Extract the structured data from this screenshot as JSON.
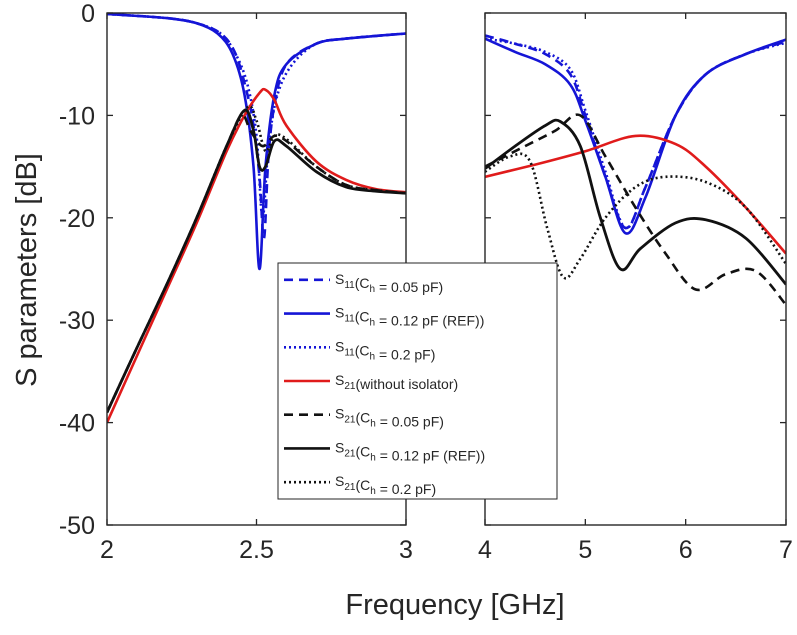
{
  "chart_data": {
    "type": "line",
    "xlabel": "Frequency [GHz]",
    "ylabel": "S parameters [dB]",
    "ylim": [
      -50,
      0
    ],
    "yticks": [
      0,
      -10,
      -20,
      -30,
      -40,
      -50
    ],
    "grid": false,
    "legend_position": "center",
    "colors": {
      "blue": "#1515d6",
      "red": "#e01b1b",
      "black": "#111111"
    },
    "panels": [
      {
        "id": "left",
        "xlim": [
          2,
          3
        ],
        "xticks": [
          "2",
          "2.5",
          "3"
        ],
        "xtick_values": [
          2,
          2.5,
          3
        ],
        "show_y_ticks": true
      },
      {
        "id": "right",
        "xlim": [
          4,
          7
        ],
        "xticks": [
          "4",
          "5",
          "6",
          "7"
        ],
        "xtick_values": [
          4,
          5,
          6,
          7
        ],
        "show_y_ticks": false
      }
    ],
    "series": [
      {
        "name": "S11 (Ch = 0.05 pF)",
        "main": "S",
        "sub": "11",
        "after": "(C",
        "sub2": "h",
        "tail": " = 0.05 pF)",
        "color": "#1515d6",
        "dash": "9,6",
        "width": 2.6,
        "left": [
          [
            2.0,
            -0.1
          ],
          [
            2.2,
            -0.5
          ],
          [
            2.3,
            -1.0
          ],
          [
            2.38,
            -2.0
          ],
          [
            2.43,
            -4.0
          ],
          [
            2.47,
            -8.0
          ],
          [
            2.49,
            -11.0
          ],
          [
            2.51,
            -16.0
          ],
          [
            2.525,
            -22.0
          ],
          [
            2.54,
            -14.0
          ],
          [
            2.56,
            -9.0
          ],
          [
            2.6,
            -5.0
          ],
          [
            2.7,
            -3.0
          ],
          [
            2.8,
            -2.5
          ],
          [
            3.0,
            -2.0
          ]
        ],
        "right": [
          [
            4.0,
            -2.2
          ],
          [
            4.3,
            -3.0
          ],
          [
            4.6,
            -4.0
          ],
          [
            4.85,
            -6.0
          ],
          [
            5.0,
            -10.0
          ],
          [
            5.2,
            -16.0
          ],
          [
            5.4,
            -21.0
          ],
          [
            5.6,
            -17.0
          ],
          [
            5.9,
            -10.0
          ],
          [
            6.2,
            -6.0
          ],
          [
            6.6,
            -4.0
          ],
          [
            7.0,
            -2.8
          ]
        ]
      },
      {
        "name": "S11 (Ch = 0.12 pF (REF))",
        "main": "S",
        "sub": "11",
        "after": "(C",
        "sub2": "h",
        "tail": " = 0.12 pF (REF))",
        "color": "#1515d6",
        "dash": "",
        "width": 2.6,
        "left": [
          [
            2.0,
            -0.1
          ],
          [
            2.2,
            -0.5
          ],
          [
            2.3,
            -1.0
          ],
          [
            2.37,
            -2.0
          ],
          [
            2.42,
            -4.0
          ],
          [
            2.46,
            -8.0
          ],
          [
            2.49,
            -15.0
          ],
          [
            2.51,
            -25.0
          ],
          [
            2.53,
            -15.0
          ],
          [
            2.56,
            -8.0
          ],
          [
            2.6,
            -5.0
          ],
          [
            2.7,
            -3.0
          ],
          [
            2.8,
            -2.5
          ],
          [
            3.0,
            -2.0
          ]
        ],
        "right": [
          [
            4.0,
            -2.5
          ],
          [
            4.3,
            -3.8
          ],
          [
            4.6,
            -5.0
          ],
          [
            4.85,
            -7.0
          ],
          [
            5.0,
            -10.5
          ],
          [
            5.2,
            -16.0
          ],
          [
            5.4,
            -21.5
          ],
          [
            5.6,
            -18.0
          ],
          [
            5.9,
            -10.0
          ],
          [
            6.2,
            -6.0
          ],
          [
            6.6,
            -4.0
          ],
          [
            7.0,
            -2.6
          ]
        ]
      },
      {
        "name": "S11 (Ch = 0.2 pF)",
        "main": "S",
        "sub": "11",
        "after": "(C",
        "sub2": "h",
        "tail": " = 0.2 pF)",
        "color": "#1515d6",
        "dash": "2,3",
        "width": 2.6,
        "left": [
          [
            2.0,
            -0.1
          ],
          [
            2.2,
            -0.5
          ],
          [
            2.3,
            -1.0
          ],
          [
            2.38,
            -2.0
          ],
          [
            2.43,
            -4.0
          ],
          [
            2.47,
            -7.0
          ],
          [
            2.5,
            -12.0
          ],
          [
            2.52,
            -20.0
          ],
          [
            2.54,
            -13.0
          ],
          [
            2.57,
            -8.0
          ],
          [
            2.62,
            -5.0
          ],
          [
            2.7,
            -3.0
          ],
          [
            2.8,
            -2.5
          ],
          [
            3.0,
            -2.0
          ]
        ],
        "right": [
          [
            4.0,
            -2.5
          ],
          [
            4.3,
            -3.0
          ],
          [
            4.6,
            -3.8
          ],
          [
            4.85,
            -5.5
          ],
          [
            5.0,
            -9.5
          ],
          [
            5.2,
            -15.5
          ],
          [
            5.4,
            -21.0
          ],
          [
            5.6,
            -17.0
          ],
          [
            5.9,
            -10.0
          ],
          [
            6.2,
            -6.0
          ],
          [
            6.6,
            -4.0
          ],
          [
            7.0,
            -2.9
          ]
        ]
      },
      {
        "name": "S21 (without isolator)",
        "main": "S",
        "sub": "21",
        "after": "(without isolator)",
        "sub2": "",
        "tail": "",
        "color": "#e01b1b",
        "dash": "",
        "width": 2.6,
        "left": [
          [
            2.0,
            -40.0
          ],
          [
            2.1,
            -33.5
          ],
          [
            2.2,
            -27.0
          ],
          [
            2.3,
            -20.5
          ],
          [
            2.4,
            -13.5
          ],
          [
            2.46,
            -10.0
          ],
          [
            2.51,
            -7.8
          ],
          [
            2.53,
            -7.5
          ],
          [
            2.56,
            -8.5
          ],
          [
            2.6,
            -11.0
          ],
          [
            2.7,
            -14.5
          ],
          [
            2.8,
            -16.3
          ],
          [
            2.9,
            -17.2
          ],
          [
            3.0,
            -17.5
          ]
        ],
        "right": [
          [
            4.0,
            -16.0
          ],
          [
            4.5,
            -14.8
          ],
          [
            5.0,
            -13.5
          ],
          [
            5.5,
            -12.0
          ],
          [
            5.9,
            -12.8
          ],
          [
            6.2,
            -15.0
          ],
          [
            6.6,
            -19.0
          ],
          [
            7.0,
            -23.5
          ]
        ]
      },
      {
        "name": "S21 (Ch = 0.05 pF)",
        "main": "S",
        "sub": "21",
        "after": "(C",
        "sub2": "h",
        "tail": " = 0.05 pF)",
        "color": "#111111",
        "dash": "9,6",
        "width": 2.6,
        "left": [
          [
            2.0,
            -39.0
          ],
          [
            2.1,
            -32.7
          ],
          [
            2.2,
            -26.5
          ],
          [
            2.3,
            -20.0
          ],
          [
            2.4,
            -13.0
          ],
          [
            2.45,
            -10.0
          ],
          [
            2.48,
            -11.5
          ],
          [
            2.52,
            -13.0
          ],
          [
            2.56,
            -12.0
          ],
          [
            2.6,
            -12.5
          ],
          [
            2.7,
            -15.0
          ],
          [
            2.8,
            -16.8
          ],
          [
            2.9,
            -17.3
          ],
          [
            3.0,
            -17.6
          ]
        ],
        "right": [
          [
            4.0,
            -15.0
          ],
          [
            4.4,
            -13.0
          ],
          [
            4.7,
            -11.5
          ],
          [
            4.95,
            -10.0
          ],
          [
            5.2,
            -14.0
          ],
          [
            5.5,
            -19.0
          ],
          [
            5.8,
            -23.5
          ],
          [
            6.1,
            -27.0
          ],
          [
            6.4,
            -25.5
          ],
          [
            6.7,
            -25.2
          ],
          [
            7.0,
            -28.5
          ]
        ]
      },
      {
        "name": "S21 (Ch = 0.12 pF (REF))",
        "main": "S",
        "sub": "21",
        "after": "(C",
        "sub2": "h",
        "tail": " = 0.12 pF (REF))",
        "color": "#111111",
        "dash": "",
        "width": 2.8,
        "left": [
          [
            2.0,
            -39.0
          ],
          [
            2.1,
            -32.7
          ],
          [
            2.2,
            -26.5
          ],
          [
            2.3,
            -20.0
          ],
          [
            2.4,
            -13.0
          ],
          [
            2.46,
            -9.5
          ],
          [
            2.49,
            -11.5
          ],
          [
            2.51,
            -15.0
          ],
          [
            2.53,
            -15.0
          ],
          [
            2.56,
            -12.5
          ],
          [
            2.6,
            -13.0
          ],
          [
            2.7,
            -15.5
          ],
          [
            2.8,
            -17.0
          ],
          [
            2.9,
            -17.4
          ],
          [
            3.0,
            -17.6
          ]
        ],
        "right": [
          [
            4.0,
            -15.2
          ],
          [
            4.3,
            -13.0
          ],
          [
            4.6,
            -11.0
          ],
          [
            4.75,
            -10.6
          ],
          [
            4.95,
            -13.0
          ],
          [
            5.15,
            -20.0
          ],
          [
            5.35,
            -25.0
          ],
          [
            5.55,
            -23.0
          ],
          [
            5.9,
            -20.5
          ],
          [
            6.2,
            -20.2
          ],
          [
            6.6,
            -22.0
          ],
          [
            7.0,
            -26.5
          ]
        ]
      },
      {
        "name": "S21 (Ch = 0.2 pF)",
        "main": "S",
        "sub": "21",
        "after": "(C",
        "sub2": "h",
        "tail": " = 0.2 pF)",
        "color": "#111111",
        "dash": "2,3",
        "width": 2.6,
        "left": [
          [
            2.0,
            -39.0
          ],
          [
            2.1,
            -32.7
          ],
          [
            2.2,
            -26.5
          ],
          [
            2.3,
            -20.0
          ],
          [
            2.4,
            -13.0
          ],
          [
            2.47,
            -9.2
          ],
          [
            2.5,
            -10.5
          ],
          [
            2.53,
            -13.5
          ],
          [
            2.56,
            -12.0
          ],
          [
            2.6,
            -12.3
          ],
          [
            2.7,
            -15.0
          ],
          [
            2.8,
            -16.8
          ],
          [
            2.9,
            -17.3
          ],
          [
            3.0,
            -17.6
          ]
        ],
        "right": [
          [
            4.0,
            -15.5
          ],
          [
            4.25,
            -14.0
          ],
          [
            4.45,
            -14.5
          ],
          [
            4.62,
            -21.0
          ],
          [
            4.78,
            -25.8
          ],
          [
            4.95,
            -24.0
          ],
          [
            5.2,
            -20.0
          ],
          [
            5.5,
            -17.0
          ],
          [
            5.8,
            -16.0
          ],
          [
            6.2,
            -16.5
          ],
          [
            6.6,
            -19.0
          ],
          [
            7.0,
            -24.5
          ]
        ]
      }
    ]
  }
}
